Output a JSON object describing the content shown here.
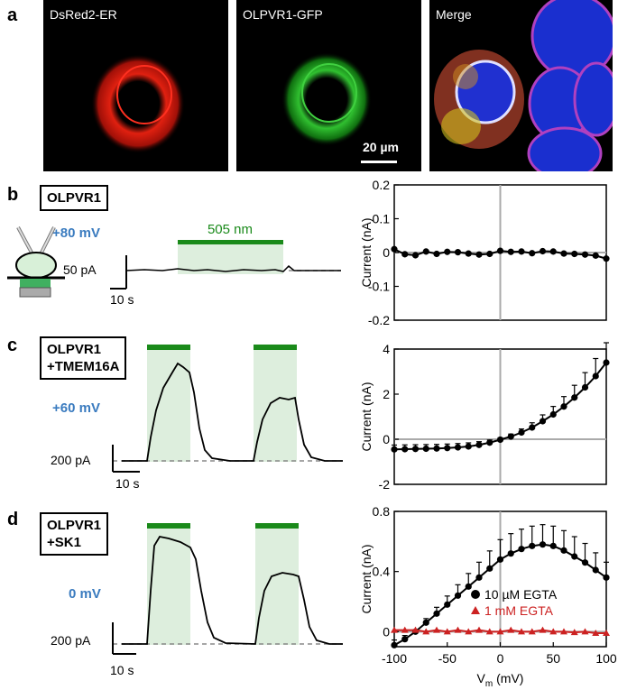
{
  "panels": {
    "a": "a",
    "b": "b",
    "c": "c",
    "d": "d"
  },
  "panel_a": {
    "images": [
      {
        "title": "DsRed2-ER"
      },
      {
        "title": "OLPVR1-GFP"
      },
      {
        "title": "Merge"
      }
    ],
    "scale_bar": "20 µm"
  },
  "panel_b": {
    "label": "OLPVR1",
    "voltage": "+80 mV",
    "light": "505 nm",
    "scale_current": "50 pA",
    "scale_time": "10 s"
  },
  "panel_c": {
    "label_line1": "OLPVR1",
    "label_line2": "+TMEM16A",
    "voltage": "+60 mV",
    "scale_current": "200 pA",
    "scale_time": "10 s"
  },
  "panel_d": {
    "label_line1": "OLPVR1",
    "label_line2": "+SK1",
    "voltage": "0 mV",
    "scale_current": "200 pA",
    "scale_time": "10 s"
  },
  "chart_data": [
    {
      "type": "scatter",
      "ylabel": "Current (nA)",
      "ylim": [
        -0.2,
        0.2
      ],
      "xlim": [
        -100,
        100
      ],
      "yticks": [
        "0.2",
        "0.1",
        "0",
        "-0.1",
        "-0.2"
      ],
      "series": [
        {
          "x": [
            -100,
            -90,
            -80,
            -70,
            -60,
            -50,
            -40,
            -30,
            -20,
            -10,
            0,
            10,
            20,
            30,
            40,
            50,
            60,
            70,
            80,
            90,
            100
          ],
          "y": [
            0.01,
            -0.005,
            -0.008,
            0.003,
            -0.004,
            0.002,
            0.001,
            -0.003,
            -0.006,
            -0.004,
            0.005,
            0.002,
            0.003,
            -0.002,
            0.004,
            0.003,
            -0.003,
            -0.004,
            -0.006,
            -0.009,
            -0.018
          ]
        }
      ]
    },
    {
      "type": "scatter",
      "ylabel": "Current (nA)",
      "ylim": [
        -2,
        4
      ],
      "xlim": [
        -100,
        100
      ],
      "yticks": [
        "4",
        "2",
        "0",
        "-2"
      ],
      "series": [
        {
          "x": [
            -100,
            -90,
            -80,
            -70,
            -60,
            -50,
            -40,
            -30,
            -20,
            -10,
            0,
            10,
            20,
            30,
            40,
            50,
            60,
            70,
            80,
            90,
            100
          ],
          "y": [
            -0.45,
            -0.44,
            -0.43,
            -0.42,
            -0.41,
            -0.39,
            -0.36,
            -0.32,
            -0.25,
            -0.15,
            -0.02,
            0.12,
            0.3,
            0.52,
            0.8,
            1.1,
            1.45,
            1.85,
            2.3,
            2.8,
            3.4
          ]
        }
      ]
    },
    {
      "type": "scatter",
      "ylabel": "Current (nA)",
      "xlabel_main": "V",
      "xlabel_sub": "m",
      "xlabel_unit": " (mV)",
      "ylim": [
        -0.1,
        0.8
      ],
      "xlim": [
        -100,
        100
      ],
      "yticks": [
        "0.8",
        "0.4",
        "0"
      ],
      "xticks": [
        "-100",
        "-50",
        "0",
        "50",
        "100"
      ],
      "legend": "center-right",
      "series": [
        {
          "name": "10 µM EGTA",
          "color": "#000000",
          "marker": "circle",
          "x": [
            -100,
            -90,
            -80,
            -70,
            -60,
            -50,
            -40,
            -30,
            -20,
            -10,
            0,
            10,
            20,
            30,
            40,
            50,
            60,
            70,
            80,
            90,
            100
          ],
          "y": [
            -0.09,
            -0.05,
            0.0,
            0.06,
            0.12,
            0.18,
            0.24,
            0.3,
            0.36,
            0.42,
            0.48,
            0.52,
            0.55,
            0.57,
            0.58,
            0.57,
            0.54,
            0.5,
            0.46,
            0.41,
            0.36
          ]
        },
        {
          "name": "1 mM EGTA",
          "color": "#cc2222",
          "marker": "triangle",
          "x": [
            -100,
            -90,
            -80,
            -70,
            -60,
            -50,
            -40,
            -30,
            -20,
            -10,
            0,
            10,
            20,
            30,
            40,
            50,
            60,
            70,
            80,
            90,
            100
          ],
          "y": [
            0.01,
            0.01,
            0.01,
            0.0,
            0.01,
            0.0,
            0.01,
            0.0,
            0.01,
            0.0,
            0.0,
            0.01,
            0.0,
            0.0,
            0.01,
            0.0,
            0.0,
            -0.005,
            0.0,
            -0.01,
            -0.01
          ]
        }
      ]
    }
  ]
}
